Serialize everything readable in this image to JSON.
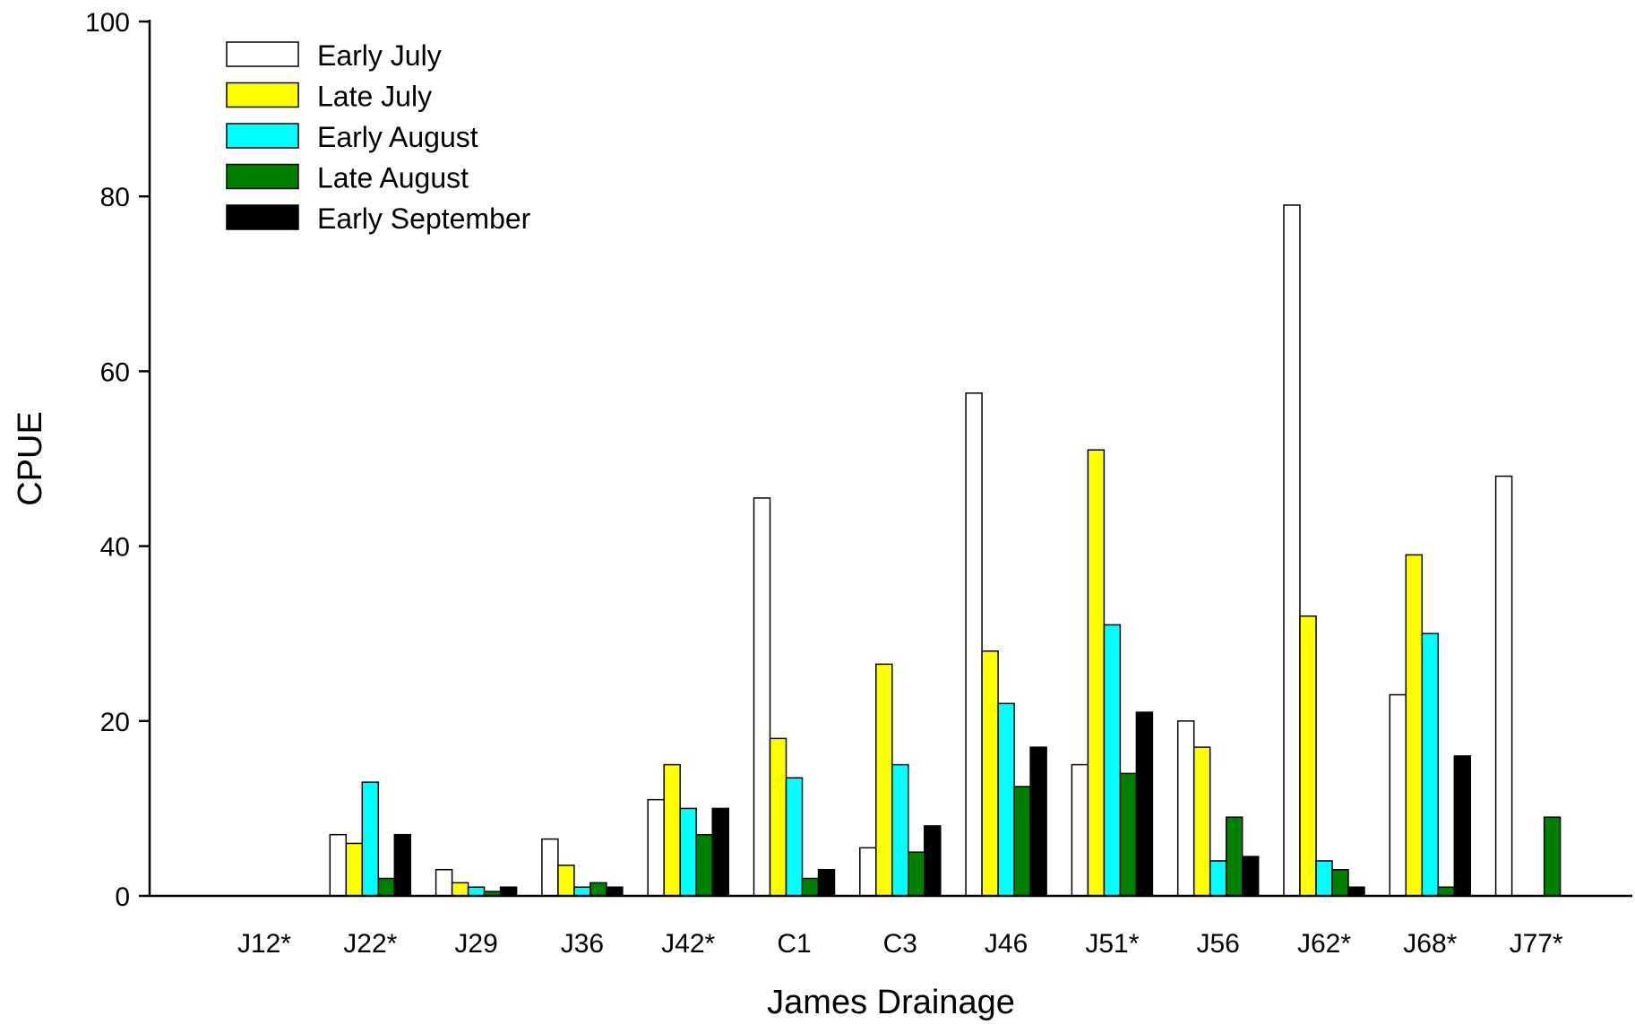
{
  "chart_data": {
    "type": "bar",
    "xlabel": "James Drainage",
    "ylabel": "CPUE",
    "ylim": [
      0,
      100
    ],
    "yticks": [
      0,
      20,
      40,
      60,
      80,
      100
    ],
    "grid": false,
    "legend_position": "top-left",
    "categories": [
      "J12*",
      "J22*",
      "J29",
      "J36",
      "J42*",
      "C1",
      "C3",
      "J46",
      "J51*",
      "J56",
      "J62*",
      "J68*",
      "J77*"
    ],
    "series": [
      {
        "name": "Early July",
        "color": "#ffffff",
        "values": [
          null,
          7,
          3,
          6.5,
          11,
          45.5,
          5.5,
          57.5,
          15,
          20,
          79,
          23,
          48
        ]
      },
      {
        "name": "Late July",
        "color": "#ffff00",
        "values": [
          null,
          6,
          1.5,
          3.5,
          15,
          18,
          26.5,
          28,
          51,
          17,
          32,
          39,
          null
        ]
      },
      {
        "name": "Early August",
        "color": "#00ffff",
        "values": [
          null,
          13,
          1,
          1,
          10,
          13.5,
          15,
          22,
          31,
          4,
          4,
          30,
          null
        ]
      },
      {
        "name": "Late August",
        "color": "#008000",
        "values": [
          null,
          2,
          0.5,
          1.5,
          7,
          2,
          5,
          12.5,
          14,
          9,
          3,
          1,
          9
        ]
      },
      {
        "name": "Early September",
        "color": "#000000",
        "values": [
          null,
          7,
          1,
          1,
          10,
          3,
          8,
          17,
          21,
          4.5,
          1,
          16,
          null
        ]
      }
    ]
  }
}
